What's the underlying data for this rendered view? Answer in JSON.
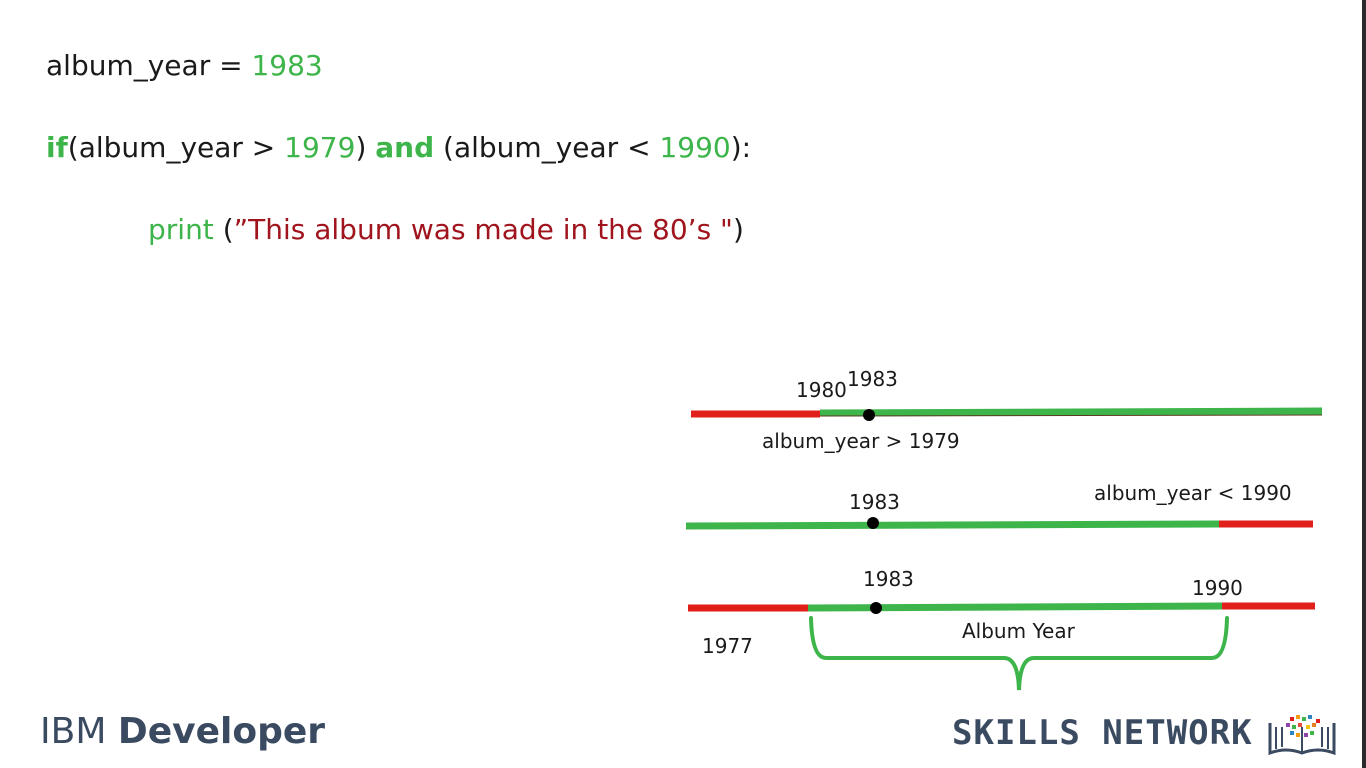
{
  "code": {
    "line1": {
      "var": "album_year",
      "op": " = ",
      "num": "1983"
    },
    "line2": {
      "kw_if": "if",
      "p1": "(album_year > ",
      "n1": "1979",
      "p2": ") ",
      "kw_and": "and",
      "p3": " (album_year < ",
      "n2": "1990",
      "p4": "):"
    },
    "line3": {
      "fn": "print",
      "p1": " (",
      "str": "”This album was made in the 80’s \"",
      "p2": ")"
    }
  },
  "diagram": {
    "row1": {
      "left_label": "1980",
      "point_label": "1983",
      "condition": "album_year > 1979"
    },
    "row2": {
      "point_label": "1983",
      "condition": "album_year < 1990"
    },
    "row3": {
      "point_label": "1983",
      "right_label": "1990",
      "start_label": "1977",
      "brace_label": "Album Year"
    }
  },
  "branding": {
    "left_plain": "IBM ",
    "left_bold": "Developer",
    "right": "SKILLS NETWORK"
  },
  "colors": {
    "green": "#3db54a",
    "red": "#e1201c",
    "string_red": "#a0151d",
    "brand": "#3a4a61"
  },
  "icons": {
    "logo": "skills-network-logo-icon",
    "point": "dot-marker-icon"
  }
}
